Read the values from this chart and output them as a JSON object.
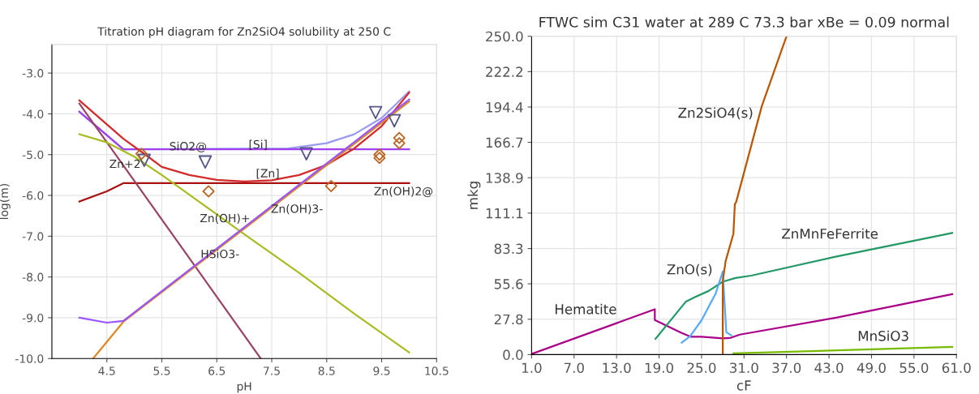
{
  "chart_data": [
    {
      "type": "line",
      "title": "Titration pH diagram for Zn2SiO4 solubility at 250 C",
      "xlabel": "pH",
      "ylabel": "log(m)",
      "xlim": [
        3.5,
        10.5
      ],
      "xticks": [
        4.5,
        5.5,
        6.5,
        7.5,
        8.5,
        9.5,
        10.5
      ],
      "ylim": [
        -10,
        -2.3
      ],
      "yticks": [
        {
          "value": -10,
          "label": "-10.0"
        },
        {
          "value": -9,
          "label": "-9.0"
        },
        {
          "value": -8,
          "label": "-8.0"
        },
        {
          "value": -7,
          "label": "-7.0"
        },
        {
          "value": -6,
          "label": "-6.0"
        },
        {
          "value": -5,
          "label": "-5.0"
        },
        {
          "value": -4,
          "label": "-4.0"
        },
        {
          "value": -3,
          "label": "-3.0"
        }
      ],
      "grid": true,
      "series": [
        {
          "name": "[Si]",
          "color": "#9999ee",
          "x": [
            4.0,
            4.8,
            7.8,
            8.5,
            9.0,
            9.5,
            10.0
          ],
          "values": [
            -3.95,
            -4.87,
            -4.85,
            -4.72,
            -4.5,
            -4.1,
            -3.45
          ]
        },
        {
          "name": "SiO2@",
          "color": "#a040f0",
          "x": [
            4.0,
            4.8,
            10.0
          ],
          "values": [
            -3.95,
            -4.87,
            -4.87
          ]
        },
        {
          "name": "[Zn]",
          "color": "#d42a2a",
          "x": [
            4.0,
            4.8,
            5.2,
            5.5,
            6.0,
            6.5,
            7.0,
            7.5,
            8.0,
            8.5,
            9.0,
            9.5,
            10.0
          ],
          "values": [
            -3.67,
            -4.61,
            -5.0,
            -5.3,
            -5.5,
            -5.62,
            -5.66,
            -5.63,
            -5.5,
            -5.25,
            -4.85,
            -4.3,
            -3.48
          ]
        },
        {
          "name": "Zn(OH)2@",
          "color": "#aa1111",
          "x": [
            4.0,
            4.5,
            4.8,
            10.0
          ],
          "values": [
            -6.15,
            -5.9,
            -5.7,
            -5.7
          ]
        },
        {
          "name": "Zn+2",
          "color": "#994466",
          "x": [
            4.0,
            7.3
          ],
          "values": [
            -3.75,
            -10.0
          ]
        },
        {
          "name": "Zn(OH)+",
          "color": "#aabb22",
          "x": [
            4.0,
            4.5,
            5.0,
            5.5,
            6.0,
            7.0,
            8.0,
            9.0,
            10.0
          ],
          "values": [
            -4.5,
            -4.7,
            -5.05,
            -5.5,
            -5.98,
            -6.95,
            -7.9,
            -8.9,
            -9.85
          ]
        },
        {
          "name": "Zn(OH)3-",
          "color": "#dd8822",
          "x": [
            4.25,
            4.8,
            10.0
          ],
          "values": [
            -10.0,
            -9.1,
            -3.7
          ]
        },
        {
          "name": "HSiO3-",
          "color": "#9955ff",
          "x": [
            4.0,
            4.5,
            4.8,
            10.0
          ],
          "values": [
            -9.0,
            -9.12,
            -9.08,
            -3.65
          ]
        },
        {
          "type": "scatter",
          "marker": "triangle",
          "color": "#555588",
          "x": [
            5.18,
            6.29,
            8.13,
            9.39,
            9.73
          ],
          "values": [
            -5.14,
            -5.18,
            -4.98,
            -3.97,
            -4.17
          ]
        },
        {
          "type": "scatter",
          "marker": "diamond",
          "color": "#bb6622",
          "x": [
            5.13,
            6.35,
            8.58,
            9.46,
            9.46,
            9.82,
            9.82
          ],
          "values": [
            -4.98,
            -5.9,
            -5.77,
            -5.0,
            -5.08,
            -4.59,
            -4.72
          ]
        }
      ]
    },
    {
      "type": "line",
      "title": "FTWC sim C31 water at 289 C 73.3 bar xBe = 0.09 normal",
      "xlabel": "cF",
      "ylabel": "mkg",
      "xlim": [
        1,
        61
      ],
      "xticks": [
        {
          "value": 1,
          "label": "1.0"
        },
        {
          "value": 7,
          "label": "7.0"
        },
        {
          "value": 13,
          "label": "13.0"
        },
        {
          "value": 19,
          "label": "19.0"
        },
        {
          "value": 25,
          "label": "25.0"
        },
        {
          "value": 31,
          "label": "31.0"
        },
        {
          "value": 37,
          "label": "37.0"
        },
        {
          "value": 43,
          "label": "43.0"
        },
        {
          "value": 49,
          "label": "49.0"
        },
        {
          "value": 55,
          "label": "55.0"
        },
        {
          "value": 61,
          "label": "61.0"
        }
      ],
      "ylim": [
        0,
        250
      ],
      "yticks": [
        {
          "value": 0,
          "label": "0.0"
        },
        27.8,
        55.6,
        83.3,
        111.1,
        138.9,
        166.7,
        194.4,
        222.2,
        {
          "value": 250,
          "label": "250.0"
        }
      ],
      "grid": true,
      "series": [
        {
          "name": "Hematite",
          "color": "#aa0088",
          "x": [
            1.0,
            18.4,
            18.4,
            22.2,
            23.5,
            25.0,
            28.0,
            29.0,
            30.4,
            44.0,
            60.4
          ],
          "values": [
            0.5,
            35.6,
            27.2,
            17.0,
            14.0,
            14.0,
            12.7,
            13.0,
            15.7,
            29.0,
            47.5
          ]
        },
        {
          "name": "ZnMnFeFerrite",
          "color": "#229966",
          "x": [
            18.5,
            22.8,
            24.0,
            26.0,
            28.0,
            29.8,
            32.0,
            43.8,
            60.4
          ],
          "values": [
            12.4,
            41.7,
            45.0,
            50.0,
            57.2,
            60.2,
            62.0,
            76.7,
            95.5
          ]
        },
        {
          "name": "ZnO(s)",
          "color": "#55aaff",
          "x": [
            22.2,
            23.4,
            25.0,
            27.0,
            28.0,
            28.2,
            28.5,
            29.2
          ],
          "values": [
            9.4,
            14.5,
            27.0,
            48.0,
            65.3,
            45.0,
            17.5,
            15.2
          ]
        },
        {
          "name": "Zn2SiO4(s)",
          "color": "#bb5500",
          "x": [
            28.0,
            28.0,
            28.4,
            29.5,
            29.7,
            29.9,
            33.5,
            37.0
          ],
          "values": [
            1.0,
            58.0,
            73.4,
            95.0,
            118.0,
            120.0,
            195.0,
            250.0
          ]
        },
        {
          "name": "MnSiO3",
          "color": "#77bb00",
          "x": [
            29.5,
            60.4
          ],
          "values": [
            1.0,
            6.0
          ]
        }
      ]
    }
  ]
}
